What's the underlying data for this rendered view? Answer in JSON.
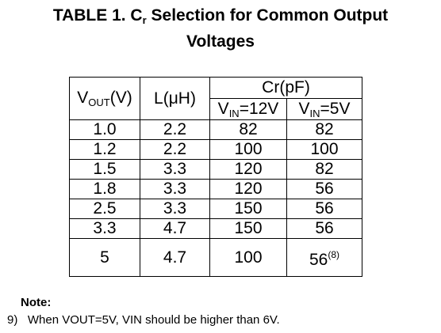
{
  "title": {
    "prefix": "TABLE 1. C",
    "sub": "r",
    "line1_rest": " Selection for Common Output",
    "line2": "Voltages"
  },
  "table": {
    "header": {
      "vout_main": "V",
      "vout_sub": "OUT",
      "vout_unit": "(V)",
      "l": "L(μH)",
      "cr": "Cr(pF)",
      "vin12_main": "V",
      "vin12_sub": "IN",
      "vin12_val": "=12V",
      "vin5_main": "V",
      "vin5_sub": "IN",
      "vin5_val": "=5V"
    },
    "rows": [
      {
        "vout": "1.0",
        "l": "2.2",
        "cr12": "82",
        "cr5": "82"
      },
      {
        "vout": "1.2",
        "l": "2.2",
        "cr12": "100",
        "cr5": "100"
      },
      {
        "vout": "1.5",
        "l": "3.3",
        "cr12": "120",
        "cr5": "82"
      },
      {
        "vout": "1.8",
        "l": "3.3",
        "cr12": "120",
        "cr5": "56"
      },
      {
        "vout": "2.5",
        "l": "3.3",
        "cr12": "150",
        "cr5": "56"
      },
      {
        "vout": "3.3",
        "l": "4.7",
        "cr12": "150",
        "cr5": "56"
      },
      {
        "vout": "5",
        "l": "4.7",
        "cr12": "100",
        "cr5": "56",
        "cr5_note": "(8)"
      }
    ]
  },
  "note": {
    "heading": "Note:",
    "items": [
      {
        "num": "9)",
        "text": "When VOUT=5V, VIN should be higher than 6V."
      }
    ]
  }
}
